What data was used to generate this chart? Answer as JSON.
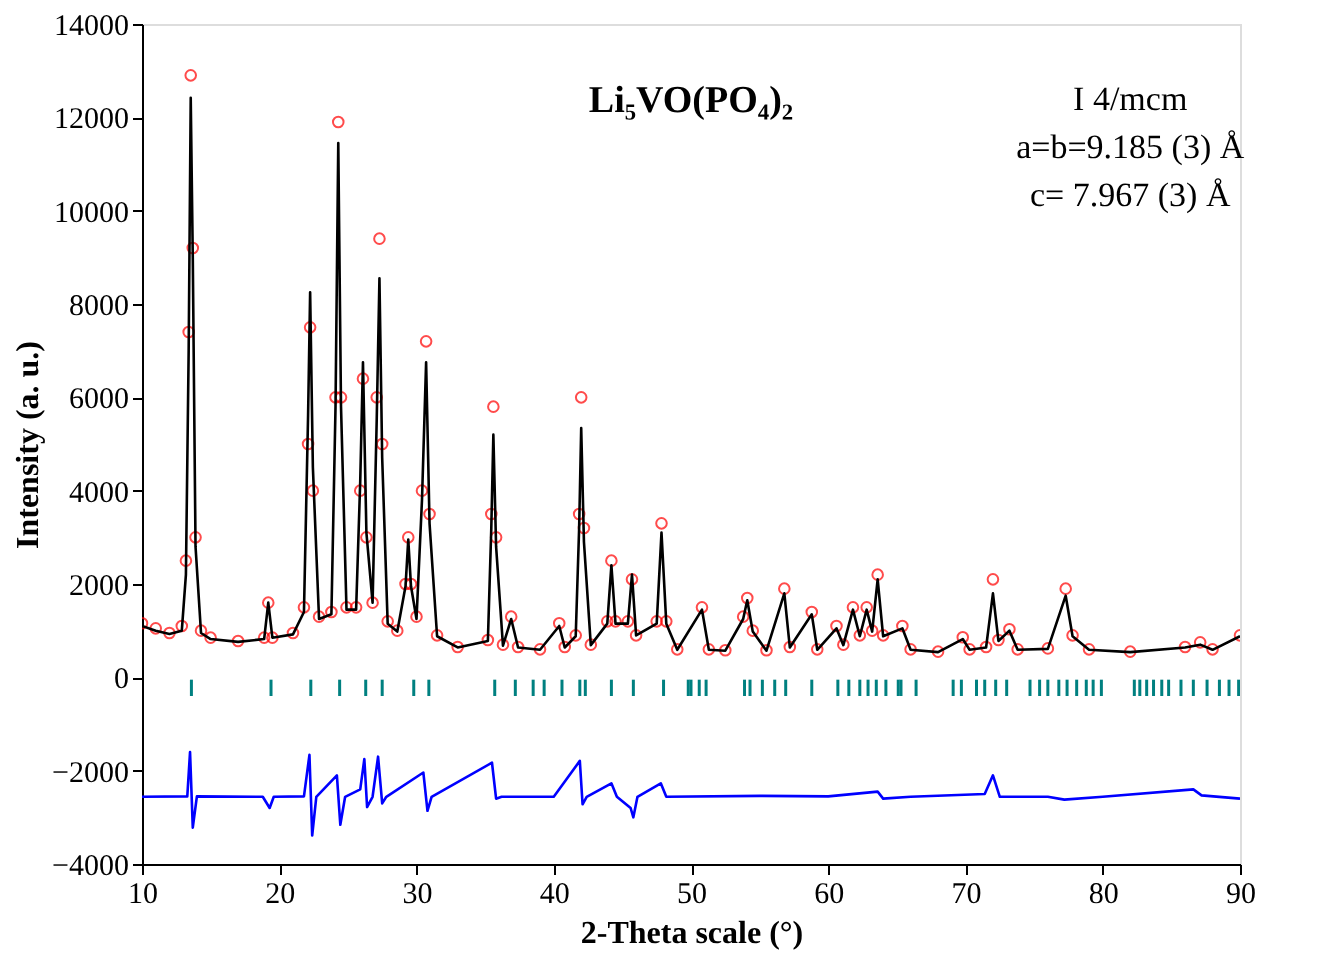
{
  "chart_data": {
    "type": "scatter",
    "xlabel": "2-Theta scale (°)",
    "ylabel": "Intensity (a. u.)",
    "xlim": [
      10,
      90
    ],
    "xticks": [
      10,
      20,
      30,
      40,
      50,
      60,
      70,
      80,
      90
    ],
    "ylim": [
      -4000,
      14000
    ],
    "yticks": [
      -4000,
      -2000,
      0,
      2000,
      4000,
      6000,
      8000,
      10000,
      12000,
      14000
    ],
    "grid": false,
    "annotations": [
      "Li₅VO(PO₄)₂",
      "I 4/mcm",
      "a=b=9.185 (3) Å",
      "c= 7.967 (3) Å"
    ],
    "series": [
      {
        "type": "scatter",
        "marker": "circle",
        "color": "#ff0000",
        "x": [
          10,
          11,
          12,
          12.9,
          13.2,
          13.4,
          13.55,
          13.7,
          13.9,
          14.3,
          15,
          17,
          18.9,
          19.2,
          19.5,
          21,
          21.8,
          22.1,
          22.25,
          22.45,
          22.9,
          23.8,
          24.1,
          24.3,
          24.5,
          24.9,
          25.6,
          25.9,
          26.1,
          26.35,
          26.8,
          27.1,
          27.3,
          27.5,
          27.9,
          28.6,
          29.2,
          29.4,
          29.6,
          30.0,
          30.4,
          30.7,
          30.95,
          31.5,
          33,
          35.2,
          35.45,
          35.6,
          35.8,
          36.3,
          36.9,
          37.4,
          39,
          40.4,
          40.8,
          41.6,
          41.85,
          42.0,
          42.2,
          42.7,
          43.9,
          44.2,
          44.5,
          45.4,
          45.7,
          46.0,
          47.5,
          47.85,
          48.2,
          49,
          50.8,
          51.3,
          52.5,
          53.8,
          54.1,
          54.5,
          55.5,
          56.8,
          57.2,
          58.8,
          59.2,
          60.6,
          61.1,
          61.8,
          62.3,
          62.8,
          63.2,
          63.6,
          64.0,
          65.4,
          66,
          68,
          69.8,
          70.3,
          71.5,
          72.0,
          72.4,
          73.2,
          73.8,
          76,
          77.3,
          77.8,
          79,
          82,
          86,
          87.1,
          88,
          90
        ],
        "values": [
          1160,
          1050,
          950,
          1100,
          2500,
          7400,
          12900,
          9200,
          3000,
          1000,
          850,
          780,
          850,
          1600,
          850,
          950,
          1500,
          5000,
          7500,
          4000,
          1300,
          1400,
          6000,
          11900,
          6000,
          1500,
          1500,
          4000,
          6400,
          3000,
          1600,
          6000,
          9400,
          5000,
          1200,
          1000,
          2000,
          3000,
          2000,
          1300,
          4000,
          7200,
          3500,
          900,
          650,
          800,
          3500,
          5800,
          3000,
          700,
          1300,
          650,
          600,
          1160,
          650,
          900,
          3500,
          6000,
          3200,
          700,
          1200,
          2500,
          1200,
          1200,
          2100,
          900,
          1200,
          3300,
          1200,
          600,
          1500,
          600,
          580,
          1300,
          1700,
          1000,
          580,
          1900,
          650,
          1400,
          600,
          1100,
          700,
          1500,
          900,
          1500,
          1000,
          2200,
          900,
          1100,
          600,
          550,
          860,
          600,
          650,
          2100,
          800,
          1030,
          600,
          620,
          1900,
          900,
          600,
          550,
          650,
          750,
          600,
          900
        ]
      },
      {
        "type": "line",
        "color": "#000000",
        "x": [
          10,
          11,
          12,
          12.9,
          13.2,
          13.4,
          13.55,
          13.7,
          13.9,
          14.3,
          15,
          17,
          18.9,
          19.2,
          19.5,
          21,
          21.8,
          22.1,
          22.25,
          22.45,
          22.9,
          23.8,
          24.1,
          24.3,
          24.5,
          24.9,
          25.6,
          25.9,
          26.1,
          26.35,
          26.8,
          27.1,
          27.3,
          27.5,
          27.9,
          28.6,
          29.2,
          29.4,
          29.6,
          30.0,
          30.4,
          30.7,
          30.95,
          31.5,
          33,
          35.2,
          35.45,
          35.6,
          35.8,
          36.3,
          36.9,
          37.4,
          39,
          40.4,
          40.8,
          41.6,
          41.85,
          42.0,
          42.2,
          42.7,
          43.9,
          44.2,
          44.5,
          45.4,
          45.7,
          46.0,
          47.5,
          47.85,
          48.2,
          49,
          50.8,
          51.3,
          52.5,
          53.8,
          54.1,
          54.5,
          55.5,
          56.8,
          57.2,
          58.8,
          59.2,
          60.6,
          61.1,
          61.8,
          62.3,
          62.8,
          63.2,
          63.6,
          64.0,
          65.4,
          66,
          68,
          69.8,
          70.3,
          71.5,
          72.0,
          72.4,
          73.2,
          73.8,
          76,
          77.3,
          77.8,
          79,
          82,
          86,
          87.1,
          88,
          90
        ],
        "values": [
          1100,
          1000,
          930,
          1000,
          2200,
          7000,
          12420,
          9000,
          2800,
          950,
          820,
          760,
          820,
          1600,
          850,
          920,
          1400,
          5600,
          8250,
          4500,
          1250,
          1350,
          5800,
          11450,
          5800,
          1450,
          1450,
          4200,
          6750,
          3100,
          1600,
          5500,
          8550,
          4700,
          1150,
          980,
          1950,
          2950,
          1950,
          1250,
          3800,
          6750,
          3300,
          880,
          640,
          780,
          3200,
          5200,
          2800,
          680,
          1250,
          640,
          590,
          1100,
          640,
          880,
          3200,
          5340,
          2900,
          690,
          1150,
          2400,
          1150,
          1150,
          2200,
          900,
          1150,
          3100,
          1150,
          590,
          1450,
          590,
          570,
          1250,
          1650,
          980,
          570,
          1800,
          640,
          1350,
          590,
          1050,
          690,
          1450,
          880,
          1450,
          980,
          2100,
          880,
          1050,
          590,
          540,
          820,
          590,
          640,
          1800,
          780,
          1000,
          590,
          610,
          1750,
          880,
          590,
          540,
          640,
          700,
          590,
          880
        ]
      },
      {
        "type": "bar",
        "color": "#008080",
        "x": [
          13.6,
          19.4,
          22.3,
          24.4,
          26.3,
          27.5,
          29.8,
          30.9,
          35.7,
          37.2,
          38.5,
          39.3,
          40.6,
          41.9,
          42.3,
          44.2,
          45.8,
          48.0,
          49.8,
          50.0,
          50.6,
          51.1,
          53.9,
          54.3,
          55.2,
          56.1,
          56.9,
          58.8,
          60.7,
          61.5,
          62.3,
          62.9,
          63.5,
          64.2,
          65.1,
          65.3,
          66.4,
          69.1,
          69.7,
          70.8,
          71.4,
          72.2,
          73.0,
          74.7,
          75.4,
          76.0,
          76.8,
          77.4,
          78.1,
          78.8,
          79.3,
          79.9,
          82.3,
          82.7,
          83.2,
          83.7,
          84.3,
          84.8,
          85.7,
          86.6,
          87.6,
          88.5,
          89.2,
          89.9
        ],
        "base": [
          -400,
          -400,
          -400,
          -400,
          -400,
          -400,
          -400,
          -400,
          -400,
          -400,
          -400,
          -400,
          -400,
          -400,
          -400,
          -400,
          -400,
          -400,
          -400,
          -400,
          -400,
          -400,
          -400,
          -400,
          -400,
          -400,
          -400,
          -400,
          -400,
          -400,
          -400,
          -400,
          -400,
          -400,
          -400,
          -400,
          -400,
          -400,
          -400,
          -400,
          -400,
          -400,
          -400,
          -400,
          -400,
          -400,
          -400,
          -400,
          -400,
          -400,
          -400,
          -400,
          -400,
          -400,
          -400,
          -400,
          -400,
          -400,
          -400,
          -400,
          -400,
          -400,
          -400,
          -400
        ],
        "values": [
          350,
          350,
          350,
          350,
          350,
          350,
          350,
          350,
          350,
          350,
          350,
          350,
          350,
          350,
          350,
          350,
          350,
          350,
          350,
          350,
          350,
          350,
          350,
          350,
          350,
          350,
          350,
          350,
          350,
          350,
          350,
          350,
          350,
          350,
          350,
          350,
          350,
          350,
          350,
          350,
          350,
          350,
          350,
          350,
          350,
          350,
          350,
          350,
          350,
          350,
          350,
          350,
          350,
          350,
          350,
          350,
          350,
          350,
          350,
          350,
          350,
          350,
          350,
          350
        ]
      },
      {
        "type": "line",
        "color": "#0000ff",
        "x": [
          10,
          13.3,
          13.5,
          13.7,
          14,
          18.8,
          19.3,
          19.6,
          21.8,
          22.2,
          22.4,
          22.7,
          24.2,
          24.45,
          24.8,
          25.9,
          26.2,
          26.4,
          26.8,
          27.2,
          27.5,
          27.8,
          30.5,
          30.8,
          31.1,
          35.5,
          35.8,
          36.2,
          40,
          41.9,
          42.1,
          42.4,
          44.2,
          44.6,
          45.6,
          45.8,
          46.1,
          47.8,
          48.2,
          55,
          60,
          63.6,
          64,
          66,
          71.4,
          72,
          72.5,
          76,
          77.2,
          80,
          86.6,
          87.2,
          90
        ],
        "values": [
          -2560,
          -2550,
          -1600,
          -3220,
          -2550,
          -2560,
          -2800,
          -2560,
          -2550,
          -1660,
          -3390,
          -2560,
          -2100,
          -3160,
          -2560,
          -2400,
          -1750,
          -2780,
          -2560,
          -1700,
          -2700,
          -2560,
          -2040,
          -2860,
          -2560,
          -1830,
          -2600,
          -2560,
          -2560,
          -1790,
          -2720,
          -2560,
          -2270,
          -2560,
          -2800,
          -3000,
          -2560,
          -2270,
          -2560,
          -2540,
          -2550,
          -2450,
          -2600,
          -2560,
          -2500,
          -2100,
          -2560,
          -2560,
          -2620,
          -2560,
          -2400,
          -2530,
          -2600
        ]
      }
    ]
  }
}
